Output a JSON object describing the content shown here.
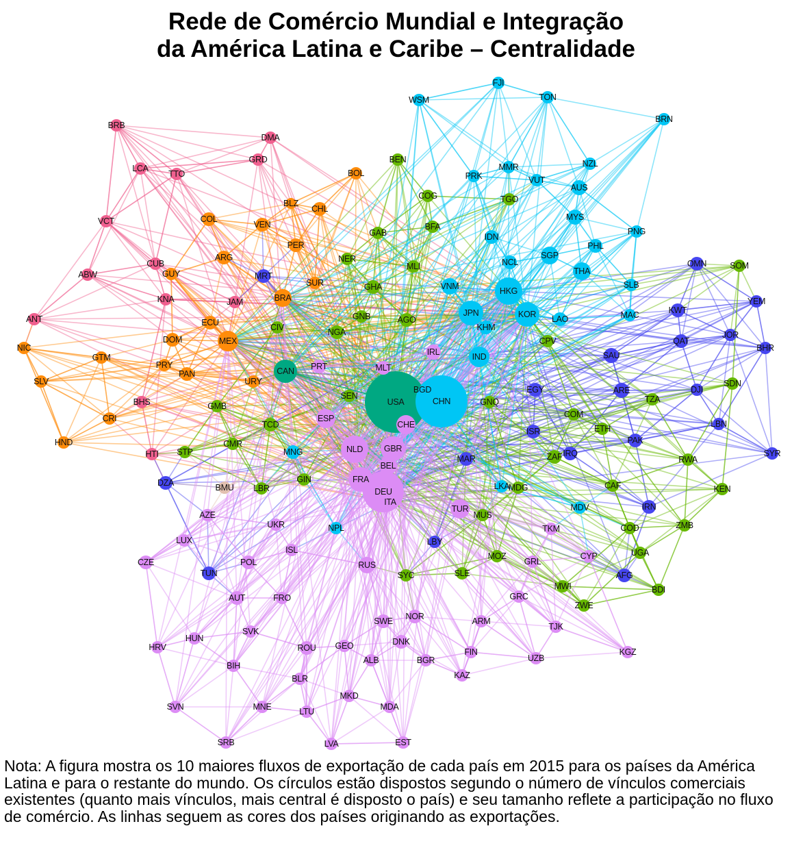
{
  "title": {
    "line1": "Rede de Comércio Mundial e Integração",
    "line2": "da América Latina e Caribe – Centralidade"
  },
  "note": "Nota: A figura mostra os 10 maiores fluxos de exportação de cada país em 2015 para os países da América Latina e para o restante do mundo. Os círculos estão dispostos segundo o número de vínculos comerciais existentes (quanto mais vínculos, mais central é disposto o país) e seu tamanho reflete a participação no fluxo de comércio. As linhas seguem as cores dos países originando as exportações.",
  "group_colors": {
    "caribbean": "#f0608f",
    "latam": "#ff8c0a",
    "africa": "#66b800",
    "asia_pacific": "#00c6f5",
    "middle_east": "#4646f0",
    "europe": "#dc8cf5",
    "north_america": "#00a882",
    "other": "#e2c0b0"
  },
  "nodes": {
    "caribbean": [
      "BRB",
      "DMA",
      "GRD",
      "LCA",
      "TTO",
      "VCT",
      "CUB",
      "ABW",
      "KNA",
      "ANT",
      "JAM",
      "BHS",
      "HTI"
    ],
    "latam": [
      "BOL",
      "BLZ",
      "CHL",
      "COL",
      "VEN",
      "PER",
      "ARG",
      "GUY",
      "SUR",
      "BRA",
      "ECU",
      "MEX",
      "DOM",
      "NIC",
      "GTM",
      "PRY",
      "PAN",
      "URY",
      "SLV",
      "CRI",
      "HND"
    ],
    "middle_east": [
      "MRT",
      "DZA",
      "TUN",
      "LBY",
      "OMN",
      "KWT",
      "YEM",
      "JOR",
      "QAT",
      "BHR",
      "SAU",
      "EGY",
      "ARE",
      "DJI",
      "LBN",
      "ISR",
      "PAK",
      "IRQ",
      "SYR",
      "MAR",
      "IRN",
      "AFG"
    ],
    "africa": [
      "BEN",
      "COG",
      "TGO",
      "GAB",
      "BFA",
      "NER",
      "MLI",
      "GHA",
      "GNB",
      "AGO",
      "CIV",
      "NGA",
      "CPV",
      "SEN",
      "GMB",
      "TCD",
      "CMR",
      "STP",
      "GIN",
      "LBR",
      "SOM",
      "SDN",
      "TZA",
      "GNQ",
      "COM",
      "ETH",
      "ZAF",
      "RWA",
      "MDG",
      "CAF",
      "KEN",
      "MUS",
      "COD",
      "ZMB",
      "UGA",
      "MOZ",
      "SLE",
      "SYC",
      "MWI",
      "BDI",
      "ZWE"
    ],
    "asia_pacific": [
      "FJI",
      "WSM",
      "TON",
      "BRN",
      "NZL",
      "MMR",
      "PRK",
      "VUT",
      "AUS",
      "MYS",
      "PNG",
      "IDN",
      "PHL",
      "NCL",
      "SGP",
      "THA",
      "SLB",
      "VNM",
      "HKG",
      "JPN",
      "KOR",
      "KHM",
      "LAO",
      "MAC",
      "IND",
      "CHN",
      "BGD",
      "MNG",
      "LKA",
      "NPL",
      "MDV"
    ],
    "europe": [
      "IRL",
      "PRT",
      "MLT",
      "ESP",
      "CHE",
      "NLD",
      "GBR",
      "BEL",
      "FRA",
      "DEU",
      "ITA",
      "TUR",
      "AZE",
      "UKR",
      "LUX",
      "ISL",
      "POL",
      "CZE",
      "RUS",
      "AUT",
      "FRO",
      "GRL",
      "CYP",
      "TKM",
      "GRC",
      "SWE",
      "NOR",
      "ARM",
      "TJK",
      "DNK",
      "SVK",
      "HUN",
      "HRV",
      "ROU",
      "GEO",
      "BIH",
      "ALB",
      "BGR",
      "FIN",
      "UZB",
      "KGZ",
      "BLR",
      "KAZ",
      "MKD",
      "SVN",
      "MNE",
      "LTU",
      "MDA",
      "SRB",
      "LVA",
      "EST"
    ],
    "north_america": [
      "CAN",
      "USA"
    ],
    "other": [
      "BMU"
    ]
  }
}
